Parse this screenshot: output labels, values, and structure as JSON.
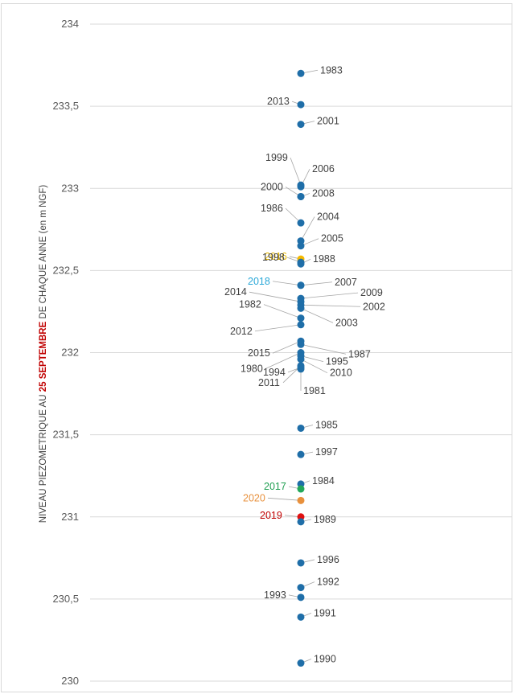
{
  "chart_data": {
    "type": "scatter",
    "ylabel_parts": [
      "NIVEAU PIEZOMETRIQUE AU ",
      "25 SEPTEMBRE",
      " DE CHAQUE ANNE (en m NGF)"
    ],
    "ylim": [
      230,
      234
    ],
    "y_ticks": [
      "230",
      "230,5",
      "231",
      "231,5",
      "232",
      "232,5",
      "233",
      "233,5",
      "234"
    ],
    "grid": true,
    "colors": {
      "default": "#1f6ea8",
      "highlight_text": "#c00000"
    },
    "points": [
      {
        "year": "1983",
        "y": 233.7,
        "color": "#1f6ea8",
        "label_color": "#404040",
        "side": "r"
      },
      {
        "year": "2013",
        "y": 233.51,
        "color": "#1f6ea8",
        "label_color": "#404040",
        "side": "l"
      },
      {
        "year": "2001",
        "y": 233.39,
        "color": "#1f6ea8",
        "label_color": "#404040",
        "side": "r"
      },
      {
        "year": "1999",
        "y": 233.02,
        "color": "#1f6ea8",
        "label_color": "#404040",
        "side": "l"
      },
      {
        "year": "2006",
        "y": 233.01,
        "color": "#1f6ea8",
        "label_color": "#404040",
        "side": "r"
      },
      {
        "year": "2000",
        "y": 232.95,
        "color": "#1f6ea8",
        "label_color": "#404040",
        "side": "l"
      },
      {
        "year": "2008",
        "y": 232.95,
        "color": "#1f6ea8",
        "label_color": "#404040",
        "side": "r"
      },
      {
        "year": "1986",
        "y": 232.79,
        "color": "#1f6ea8",
        "label_color": "#404040",
        "side": "l"
      },
      {
        "year": "2004",
        "y": 232.68,
        "color": "#1f6ea8",
        "label_color": "#404040",
        "side": "r"
      },
      {
        "year": "2016",
        "y": 232.57,
        "color": "#f4b800",
        "label_color": "#e6b800",
        "side": "l"
      },
      {
        "year": "2005",
        "y": 232.65,
        "color": "#1f6ea8",
        "label_color": "#404040",
        "side": "r"
      },
      {
        "year": "1998",
        "y": 232.55,
        "color": "#1f6ea8",
        "label_color": "#404040",
        "side": "l"
      },
      {
        "year": "1988",
        "y": 232.54,
        "color": "#1f6ea8",
        "label_color": "#404040",
        "side": "r"
      },
      {
        "year": "2018",
        "y": 232.41,
        "color": "#3bb5e6",
        "label_color": "#2aa8d8",
        "side": "l"
      },
      {
        "year": "2007",
        "y": 232.41,
        "color": "#1f6ea8",
        "label_color": "#404040",
        "side": "r"
      },
      {
        "year": "2014",
        "y": 232.31,
        "color": "#1f6ea8",
        "label_color": "#404040",
        "side": "l"
      },
      {
        "year": "2009",
        "y": 232.33,
        "color": "#1f6ea8",
        "label_color": "#404040",
        "side": "r"
      },
      {
        "year": "1982",
        "y": 232.21,
        "color": "#1f6ea8",
        "label_color": "#404040",
        "side": "l"
      },
      {
        "year": "2002",
        "y": 232.29,
        "color": "#1f6ea8",
        "label_color": "#404040",
        "side": "r"
      },
      {
        "year": "2003",
        "y": 232.27,
        "color": "#1f6ea8",
        "label_color": "#404040",
        "side": "r"
      },
      {
        "year": "2012",
        "y": 232.17,
        "color": "#1f6ea8",
        "label_color": "#404040",
        "side": "l"
      },
      {
        "year": "2015",
        "y": 232.07,
        "color": "#1f6ea8",
        "label_color": "#404040",
        "side": "l"
      },
      {
        "year": "1987",
        "y": 232.05,
        "color": "#1f6ea8",
        "label_color": "#404040",
        "side": "r"
      },
      {
        "year": "1980",
        "y": 232.0,
        "color": "#1f6ea8",
        "label_color": "#404040",
        "side": "l"
      },
      {
        "year": "1995",
        "y": 231.98,
        "color": "#1f6ea8",
        "label_color": "#404040",
        "side": "r"
      },
      {
        "year": "1994",
        "y": 231.91,
        "color": "#1f6ea8",
        "label_color": "#404040",
        "side": "l"
      },
      {
        "year": "2010",
        "y": 231.96,
        "color": "#1f6ea8",
        "label_color": "#404040",
        "side": "r"
      },
      {
        "year": "1981",
        "y": 231.9,
        "color": "#1f6ea8",
        "label_color": "#404040",
        "side": "r"
      },
      {
        "year": "2011",
        "y": 231.92,
        "color": "#1f6ea8",
        "label_color": "#404040",
        "side": "l"
      },
      {
        "year": "1985",
        "y": 231.54,
        "color": "#1f6ea8",
        "label_color": "#404040",
        "side": "r"
      },
      {
        "year": "1997",
        "y": 231.38,
        "color": "#1f6ea8",
        "label_color": "#404040",
        "side": "r"
      },
      {
        "year": "1984",
        "y": 231.2,
        "color": "#1f6ea8",
        "label_color": "#404040",
        "side": "r"
      },
      {
        "year": "2017",
        "y": 231.17,
        "color": "#22a85a",
        "label_color": "#1e9e50",
        "side": "l"
      },
      {
        "year": "2020",
        "y": 231.1,
        "color": "#e8903c",
        "label_color": "#e8903c",
        "side": "l"
      },
      {
        "year": "2019",
        "y": 231.0,
        "color": "#e01010",
        "label_color": "#c00000",
        "side": "l"
      },
      {
        "year": "1989",
        "y": 230.97,
        "color": "#1f6ea8",
        "label_color": "#404040",
        "side": "r"
      },
      {
        "year": "1996",
        "y": 230.72,
        "color": "#1f6ea8",
        "label_color": "#404040",
        "side": "r"
      },
      {
        "year": "1992",
        "y": 230.57,
        "color": "#1f6ea8",
        "label_color": "#404040",
        "side": "r"
      },
      {
        "year": "1993",
        "y": 230.51,
        "color": "#1f6ea8",
        "label_color": "#404040",
        "side": "l"
      },
      {
        "year": "1991",
        "y": 230.39,
        "color": "#1f6ea8",
        "label_color": "#404040",
        "side": "r"
      },
      {
        "year": "1990",
        "y": 230.11,
        "color": "#1f6ea8",
        "label_color": "#404040",
        "side": "r"
      }
    ]
  }
}
